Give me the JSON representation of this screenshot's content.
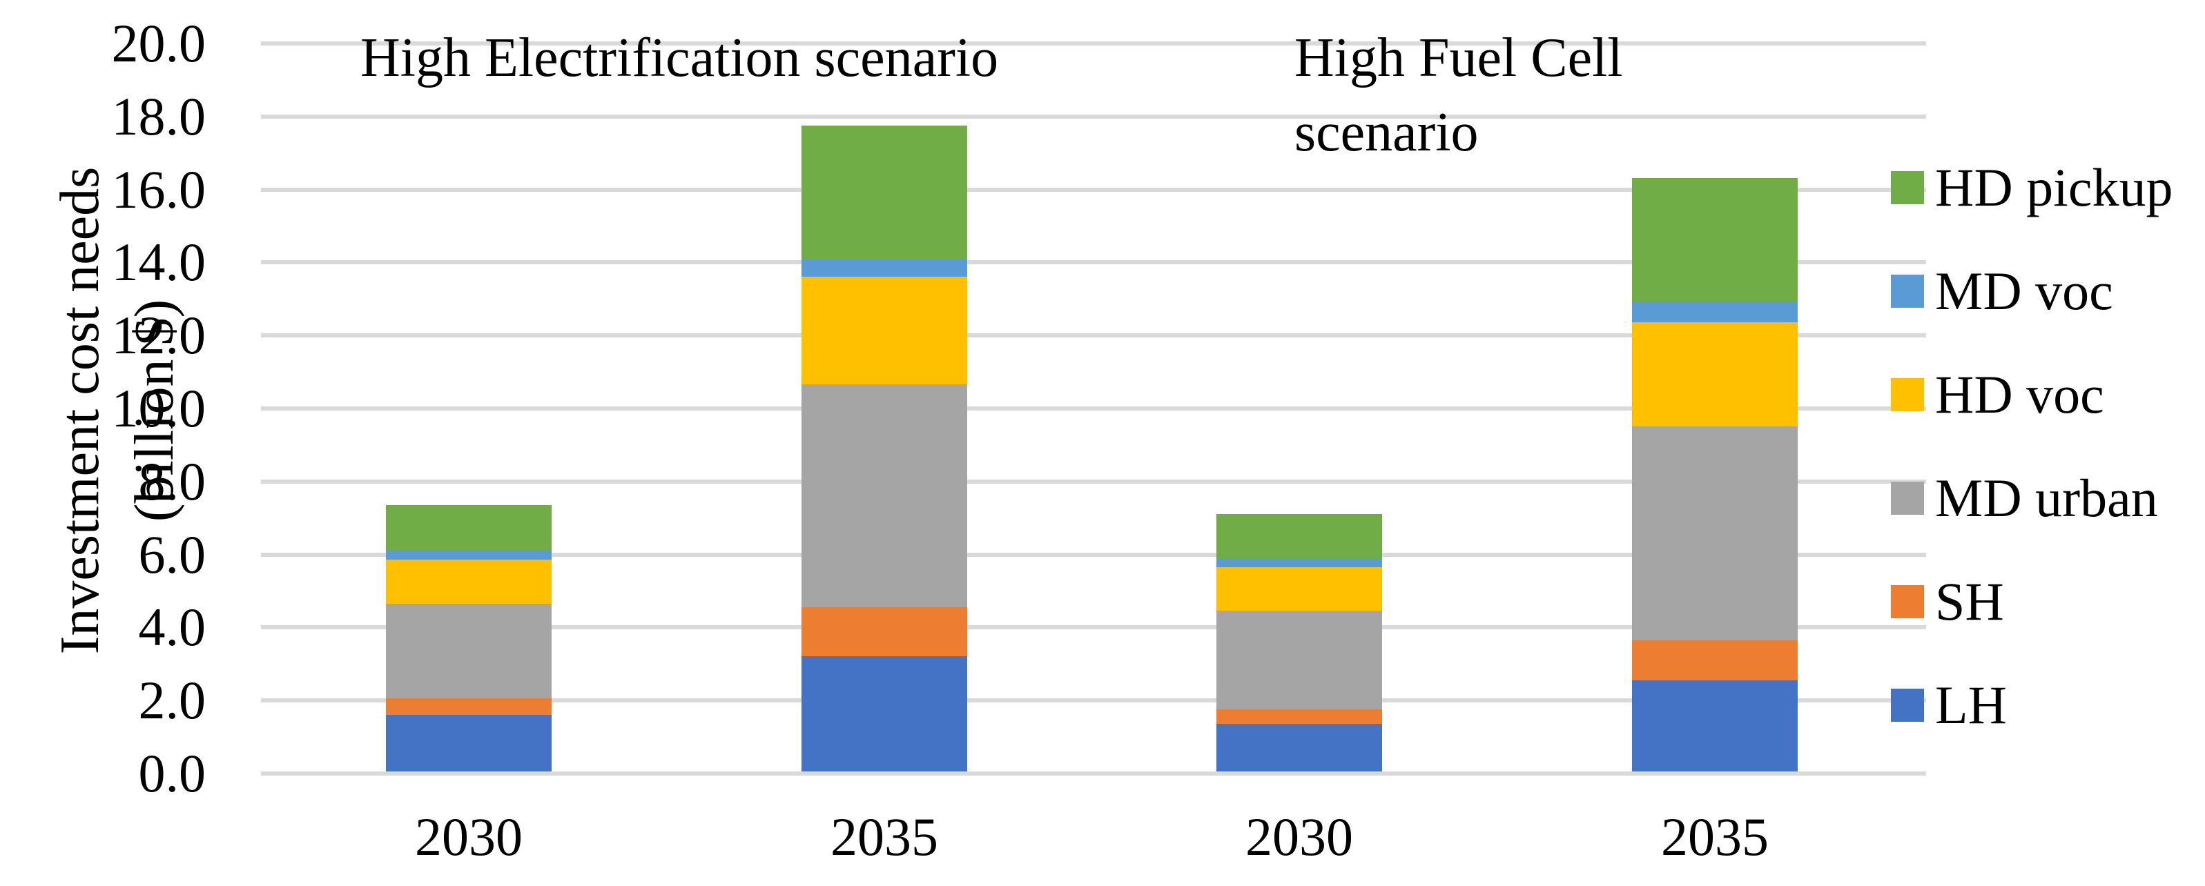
{
  "chart_data": {
    "type": "bar",
    "stacked": true,
    "orientation": "vertical",
    "categories": [
      "2030",
      "2035",
      "2030",
      "2035"
    ],
    "group_annotations": [
      "High Electrification scenario",
      "High Fuel Cell scenario"
    ],
    "series": [
      {
        "name": "LH",
        "color": "#4472C4",
        "values": [
          1.55,
          3.15,
          1.3,
          2.5
        ]
      },
      {
        "name": "SH",
        "color": "#ED7D31",
        "values": [
          0.45,
          1.35,
          0.4,
          1.1
        ]
      },
      {
        "name": "MD urban",
        "color": "#A5A5A5",
        "values": [
          2.6,
          6.1,
          2.7,
          5.85
        ]
      },
      {
        "name": "HD voc",
        "color": "#FFC000",
        "values": [
          1.2,
          2.95,
          1.2,
          2.85
        ]
      },
      {
        "name": "MD voc",
        "color": "#5B9BD5",
        "values": [
          0.25,
          0.5,
          0.25,
          0.55
        ]
      },
      {
        "name": "HD pickup",
        "color": "#70AD47",
        "values": [
          1.25,
          3.65,
          1.2,
          3.4
        ]
      }
    ],
    "stack_totals": [
      7.3,
      17.7,
      7.05,
      16.25
    ],
    "ylabel": "Investment cost needs (billion $)",
    "ylabel_lines": [
      "Investment cost needs",
      "(billion $)"
    ],
    "ylim": [
      0,
      20
    ],
    "ytick_step": 2,
    "ytick_labels": [
      "0.0",
      "2.0",
      "4.0",
      "6.0",
      "8.0",
      "10.0",
      "12.0",
      "14.0",
      "16.0",
      "18.0",
      "20.0"
    ],
    "grid": true,
    "gridline_color": "#D9D9D9",
    "legend_position": "right",
    "legend_order": [
      "HD pickup",
      "MD voc",
      "HD voc",
      "MD urban",
      "SH",
      "LH"
    ],
    "background": "#FFFFFF",
    "text_color": "#000000"
  }
}
